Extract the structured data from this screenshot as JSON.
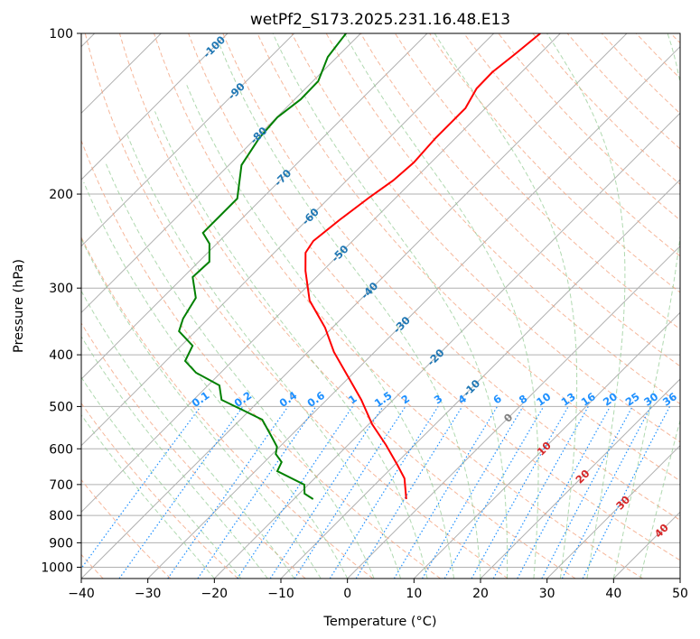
{
  "chart_data": {
    "type": "line",
    "subtype": "skew-t log-p",
    "title": "wetPf2_S173.2025.231.16.48.E13",
    "xlabel": "Temperature (°C)",
    "ylabel": "Pressure (hPa)",
    "xlim": [
      -40,
      50
    ],
    "ylim": [
      1050,
      100
    ],
    "xticks": [
      "−40",
      "−30",
      "−20",
      "−10",
      "0",
      "10",
      "20",
      "30",
      "40",
      "50"
    ],
    "xtick_values": [
      -40,
      -30,
      -20,
      -10,
      0,
      10,
      20,
      30,
      40,
      50
    ],
    "yticks": [
      "100",
      "200",
      "300",
      "400",
      "500",
      "600",
      "700",
      "800",
      "900",
      "1000"
    ],
    "ytick_values": [
      100,
      200,
      300,
      400,
      500,
      600,
      700,
      800,
      900,
      1000
    ],
    "grid": true,
    "series": [
      {
        "name": "temperature",
        "color": "#ff0000",
        "pressure": [
          745.5,
          681.6,
          643.0,
          590.2,
          539.6,
          485.8,
          444.2,
          395.2,
          355.8,
          316.5,
          278.4,
          257.5,
          244.8,
          223.0,
          202.3,
          188.6,
          174.5,
          157.1,
          146.4,
          138.1,
          126.8,
          118.2,
          109.4,
          100
        ],
        "temperature": [
          -3.1,
          -6.5,
          -9.6,
          -14.3,
          -19.5,
          -24.8,
          -29.7,
          -36.1,
          -41.1,
          -47.5,
          -52.6,
          -55.3,
          -55.9,
          -55.1,
          -54.0,
          -53.0,
          -52.6,
          -53.0,
          -53.0,
          -53.0,
          -54.3,
          -54.4,
          -53.7,
          -53.0
        ]
      },
      {
        "name": "dewpoint",
        "color": "#008000",
        "pressure": [
          745.5,
          728.2,
          700.5,
          660.7,
          635.4,
          613.6,
          594.8,
          567.6,
          529.2,
          509.0,
          485.8,
          456.4,
          432.2,
          410.9,
          384.6,
          361.4,
          342.2,
          312.9,
          286.1,
          267.8,
          247.7,
          236.4,
          223.0,
          203.9,
          176.5,
          157.1,
          143.6,
          132.9,
          122.9,
          110.7,
          100
        ],
        "temperature": [
          -17.1,
          -19.2,
          -20.6,
          -26.7,
          -27.4,
          -29.5,
          -30.4,
          -32.9,
          -36.7,
          -40.8,
          -45.8,
          -48.3,
          -53.7,
          -57.1,
          -58.3,
          -62.5,
          -63.8,
          -65.0,
          -68.6,
          -68.4,
          -71.1,
          -73.7,
          -73.7,
          -73.7,
          -78.1,
          -79.5,
          -79.9,
          -79.1,
          -79.2,
          -81.4,
          -82.2
        ]
      }
    ],
    "isotherm_labels": [
      "-100",
      "-90",
      "-80",
      "-70",
      "-60",
      "-50",
      "-40",
      "-30",
      "-20",
      "-10",
      "0",
      "10",
      "20",
      "30",
      "40"
    ],
    "isotherm_label_values": [
      -100,
      -90,
      -80,
      -70,
      -60,
      -50,
      -40,
      -30,
      -20,
      -10,
      0,
      10,
      20,
      30,
      40
    ],
    "mixing_ratio_labels": [
      "0.1",
      "0.2",
      "0.4",
      "0.6",
      "1",
      "1.5",
      "2",
      "3",
      "4",
      "6",
      "8",
      "10",
      "13",
      "16",
      "20",
      "25",
      "30",
      "36"
    ],
    "mixing_ratio_values": [
      0.1,
      0.2,
      0.4,
      0.6,
      1,
      1.5,
      2,
      3,
      4,
      6,
      8,
      10,
      13,
      16,
      20,
      25,
      30,
      36
    ],
    "colors": {
      "dry_adiabat": "#f4a582",
      "moist_adiabat": "#8fc98f",
      "mixing_ratio": "#1e90ff",
      "isotherm_cold": "#1f77b4",
      "isotherm_zero": "#808080",
      "isotherm_warm": "#d62728",
      "grid": "#b0b0b0"
    }
  }
}
